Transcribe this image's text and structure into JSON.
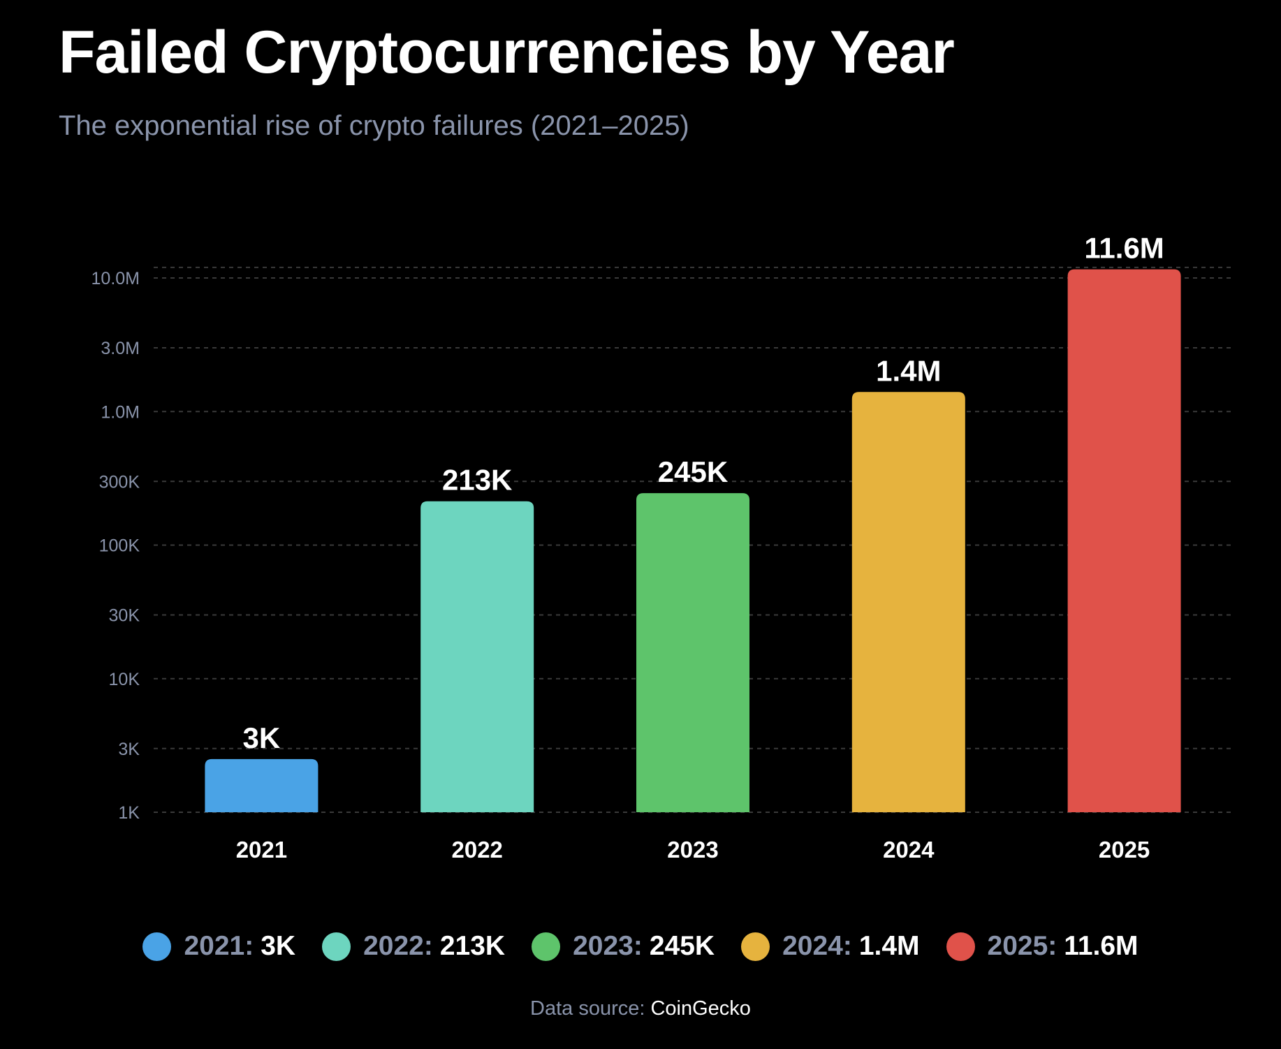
{
  "chart_data": {
    "type": "bar",
    "title": "Failed Cryptocurrencies by Year",
    "subtitle": "The exponential rise of crypto failures (2021–2025)",
    "scale": "log",
    "ylim": [
      1000,
      12000000
    ],
    "yticks": [
      {
        "value": 1000,
        "label": "1K"
      },
      {
        "value": 3000,
        "label": "3K"
      },
      {
        "value": 10000,
        "label": "10K"
      },
      {
        "value": 30000,
        "label": "30K"
      },
      {
        "value": 100000,
        "label": "100K"
      },
      {
        "value": 300000,
        "label": "300K"
      },
      {
        "value": 1000000,
        "label": "1.0M"
      },
      {
        "value": 3000000,
        "label": "3.0M"
      },
      {
        "value": 10000000,
        "label": "10.0M"
      }
    ],
    "grid": true,
    "legend_position": "bottom",
    "categories": [
      "2021",
      "2022",
      "2023",
      "2024",
      "2025"
    ],
    "values": [
      2500,
      213000,
      245000,
      1400000,
      11600000
    ],
    "value_labels": [
      "3K",
      "213K",
      "245K",
      "1.4M",
      "11.6M"
    ],
    "colors": [
      "#4aa3e6",
      "#6dd5bf",
      "#5ec46b",
      "#e6b33e",
      "#e0524a"
    ],
    "legend": [
      {
        "year": "2021",
        "value": "3K"
      },
      {
        "year": "2022",
        "value": "213K"
      },
      {
        "year": "2023",
        "value": "245K"
      },
      {
        "year": "2024",
        "value": "1.4M"
      },
      {
        "year": "2025",
        "value": "11.6M"
      }
    ],
    "source_label": "Data source:",
    "source_value": "CoinGecko"
  },
  "theme": {
    "background": "#000000",
    "grid": "#3a3a3a",
    "tick_text": "#8a94ab",
    "text": "#ffffff"
  }
}
